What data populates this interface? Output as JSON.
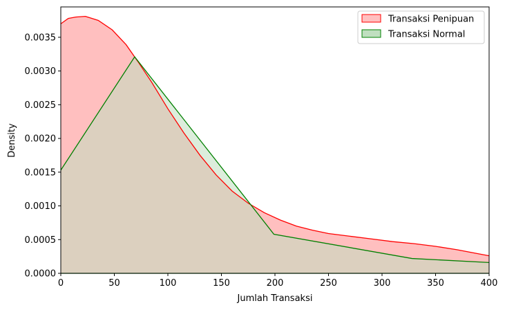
{
  "chart_data": {
    "type": "area",
    "xlabel": "Jumlah Transaksi",
    "ylabel": "Density",
    "xlim": [
      0,
      400
    ],
    "ylim": [
      0,
      0.00395
    ],
    "x_ticks": [
      "0",
      "50",
      "100",
      "150",
      "200",
      "250",
      "300",
      "350",
      "400"
    ],
    "y_ticks": [
      "0.0000",
      "0.0005",
      "0.0010",
      "0.0015",
      "0.0020",
      "0.0025",
      "0.0030",
      "0.0035"
    ],
    "grid": false,
    "legend_position": "top-right",
    "series": [
      {
        "name": "Transaksi Penipuan",
        "color": "#ff0000",
        "fill": "#ffbfbf",
        "x": [
          0,
          7,
          14,
          23,
          35,
          48,
          61,
          72,
          85,
          100,
          115,
          130,
          145,
          160,
          175,
          190,
          205,
          220,
          235,
          250,
          270,
          290,
          310,
          330,
          350,
          370,
          390,
          400
        ],
        "y": [
          0.0037,
          0.00378,
          0.0038,
          0.00381,
          0.00375,
          0.00361,
          0.00339,
          0.00314,
          0.00283,
          0.00244,
          0.00208,
          0.00175,
          0.00146,
          0.00122,
          0.00104,
          0.0009,
          0.00079,
          0.0007,
          0.00064,
          0.00059,
          0.00055,
          0.00051,
          0.00047,
          0.00044,
          0.0004,
          0.00035,
          0.00029,
          0.00026
        ]
      },
      {
        "name": "Transaksi Normal",
        "color": "#008000",
        "fill": "#bfdfbf",
        "x": [
          0,
          69,
          199,
          328,
          400
        ],
        "y": [
          0.00153,
          0.00321,
          0.00058,
          0.00022,
          0.00016
        ]
      }
    ]
  }
}
